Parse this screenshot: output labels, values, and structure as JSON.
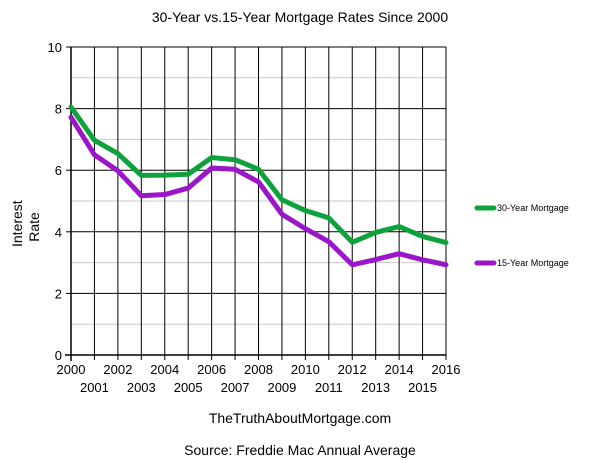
{
  "chart_data": {
    "type": "line",
    "title": "30-Year vs.15-Year Mortgage Rates Since 2000",
    "xlabel": "",
    "ylabel": "Interest Rate",
    "ylabel_lines": [
      "Interest",
      "Rate"
    ],
    "x": [
      2000,
      2001,
      2002,
      2003,
      2004,
      2005,
      2006,
      2007,
      2008,
      2009,
      2010,
      2011,
      2012,
      2013,
      2014,
      2015,
      2016
    ],
    "x_tick_labels_upper": [
      "2000",
      "2002",
      "2004",
      "2006",
      "2008",
      "2010",
      "2012",
      "2014",
      "2016"
    ],
    "x_tick_labels_lower": [
      "2001",
      "2003",
      "2005",
      "2007",
      "2009",
      "2011",
      "2013",
      "2015"
    ],
    "y_ticks": [
      "0",
      "2",
      "4",
      "6",
      "8",
      "10"
    ],
    "ylim": [
      0,
      10
    ],
    "xlim": [
      2000,
      2016
    ],
    "grid": true,
    "legend_position": "right",
    "series": [
      {
        "name": "30-Year Mortgage",
        "color": "#0fa23c",
        "values": [
          8.05,
          6.97,
          6.54,
          5.83,
          5.84,
          5.87,
          6.41,
          6.34,
          6.03,
          5.04,
          4.69,
          4.45,
          3.66,
          3.98,
          4.17,
          3.85,
          3.65
        ]
      },
      {
        "name": "15-Year Mortgage",
        "color": "#9b16c8",
        "values": [
          7.72,
          6.5,
          5.98,
          5.17,
          5.21,
          5.42,
          6.07,
          6.03,
          5.62,
          4.57,
          4.1,
          3.68,
          2.93,
          3.1,
          3.29,
          3.09,
          2.93
        ]
      }
    ]
  },
  "footer": {
    "watermark": "TheTruthAboutMortgage.com",
    "source": "Source: Freddie Mac Annual Average"
  }
}
